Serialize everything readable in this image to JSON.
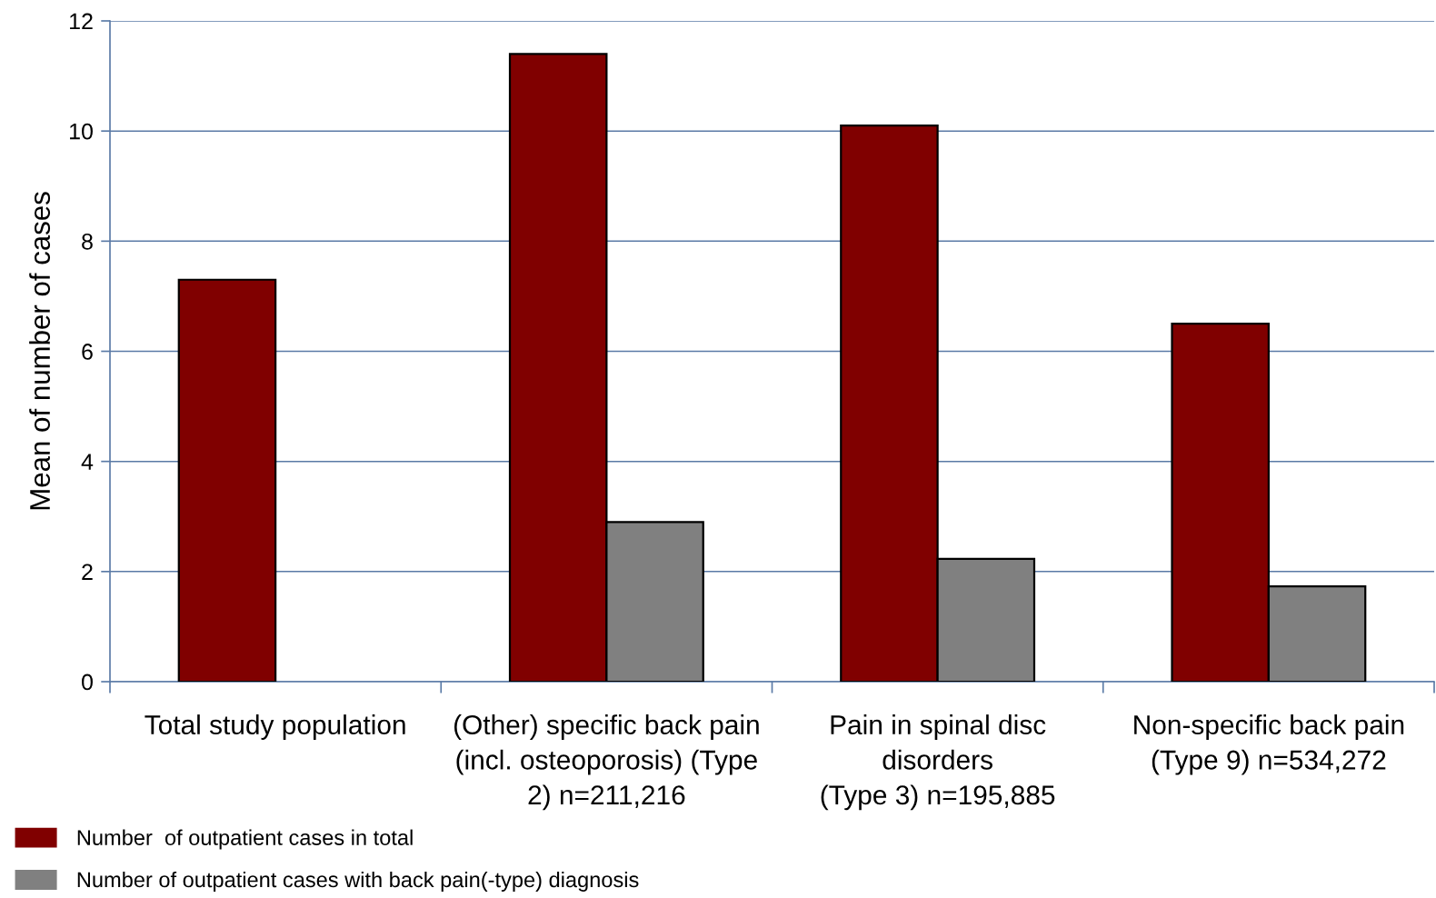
{
  "chart_data": {
    "type": "bar",
    "ylabel": "Mean of number of cases",
    "categories": [
      "Total study population",
      "(Other) specific back pain\n(incl. osteoporosis) (Type\n2) n=211,216",
      "Pain in spinal disc\ndisorders\n(Type 3) n=195,885",
      "Non-specific back pain\n(Type 9) n=534,272"
    ],
    "series": [
      {
        "name": "Number  of outpatient cases in total",
        "color": "#800000",
        "values": [
          7.3,
          11.4,
          10.1,
          6.5
        ]
      },
      {
        "name": "Number of outpatient cases with back pain(-type) diagnosis",
        "color": "#808080",
        "values": [
          null,
          2.9,
          2.23,
          1.73
        ]
      }
    ],
    "ylim": [
      0,
      12
    ],
    "yticks": [
      0,
      2,
      4,
      6,
      8,
      10,
      12
    ],
    "grid": "y",
    "legend": "bottom left"
  }
}
